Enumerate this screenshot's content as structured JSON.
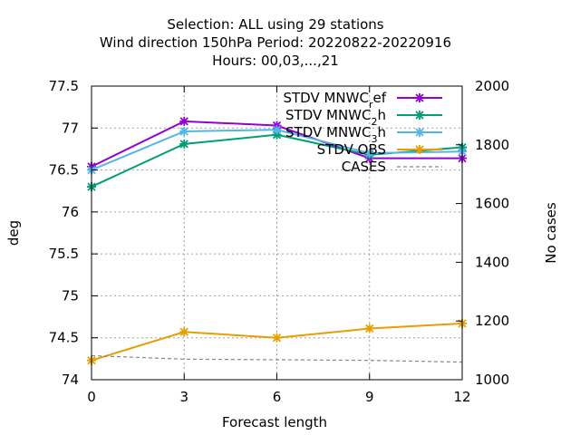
{
  "chart_data": {
    "type": "line",
    "title_lines": [
      "Selection: ALL using    29 stations",
      "Wind direction 150hPa   Period: 20220822-20220916",
      "Hours:  00,03,...,21"
    ],
    "xlabel": "Forecast length",
    "ylabel": "deg",
    "y2label": "No cases",
    "x": [
      0,
      3,
      6,
      9,
      12
    ],
    "xlim": [
      0,
      12
    ],
    "ylim": [
      74,
      77.5
    ],
    "y2lim": [
      1000,
      2000
    ],
    "xticks": [
      "0",
      "3",
      "6",
      "9",
      "12"
    ],
    "yticks": [
      "74",
      "74.5",
      "75",
      "75.5",
      "76",
      "76.5",
      "77",
      "77.5"
    ],
    "y2ticks": [
      "1000",
      "1200",
      "1400",
      "1600",
      "1800",
      "2000"
    ],
    "grid": true,
    "legend_position": "top-right",
    "series": [
      {
        "name": "STDV MNWC_ref",
        "legend_main": "STDV MNWC",
        "legend_sub": "r",
        "legend_tail": "ef",
        "color": "#9400d3",
        "axis": "y1",
        "marker": "x-star",
        "values": [
          76.54,
          77.08,
          77.03,
          76.64,
          76.64
        ]
      },
      {
        "name": "STDV MNWC_2h",
        "legend_main": "STDV MNWC",
        "legend_sub": "2",
        "legend_tail": "h",
        "color": "#009e73",
        "axis": "y1",
        "marker": "x-star",
        "values": [
          76.3,
          76.81,
          76.92,
          76.68,
          76.77
        ]
      },
      {
        "name": "STDV MNWC_3h",
        "legend_main": "STDV MNWC",
        "legend_sub": "3",
        "legend_tail": "h",
        "color": "#56b4e9",
        "axis": "y1",
        "marker": "x-star",
        "values": [
          76.5,
          76.96,
          76.98,
          76.7,
          76.72
        ]
      },
      {
        "name": "STDV OBS",
        "legend_main": "STDV OBS",
        "legend_sub": "",
        "legend_tail": "",
        "color": "#e69f00",
        "axis": "y1",
        "marker": "x-star",
        "values": [
          74.23,
          74.57,
          74.5,
          74.61,
          74.67
        ]
      },
      {
        "name": "CASES",
        "legend_main": "CASES",
        "legend_sub": "",
        "legend_tail": "",
        "color": "#888888",
        "axis": "y2",
        "marker": "none",
        "dashed": true,
        "values": [
          1082,
          1070,
          1068,
          1066,
          1060
        ]
      }
    ]
  }
}
